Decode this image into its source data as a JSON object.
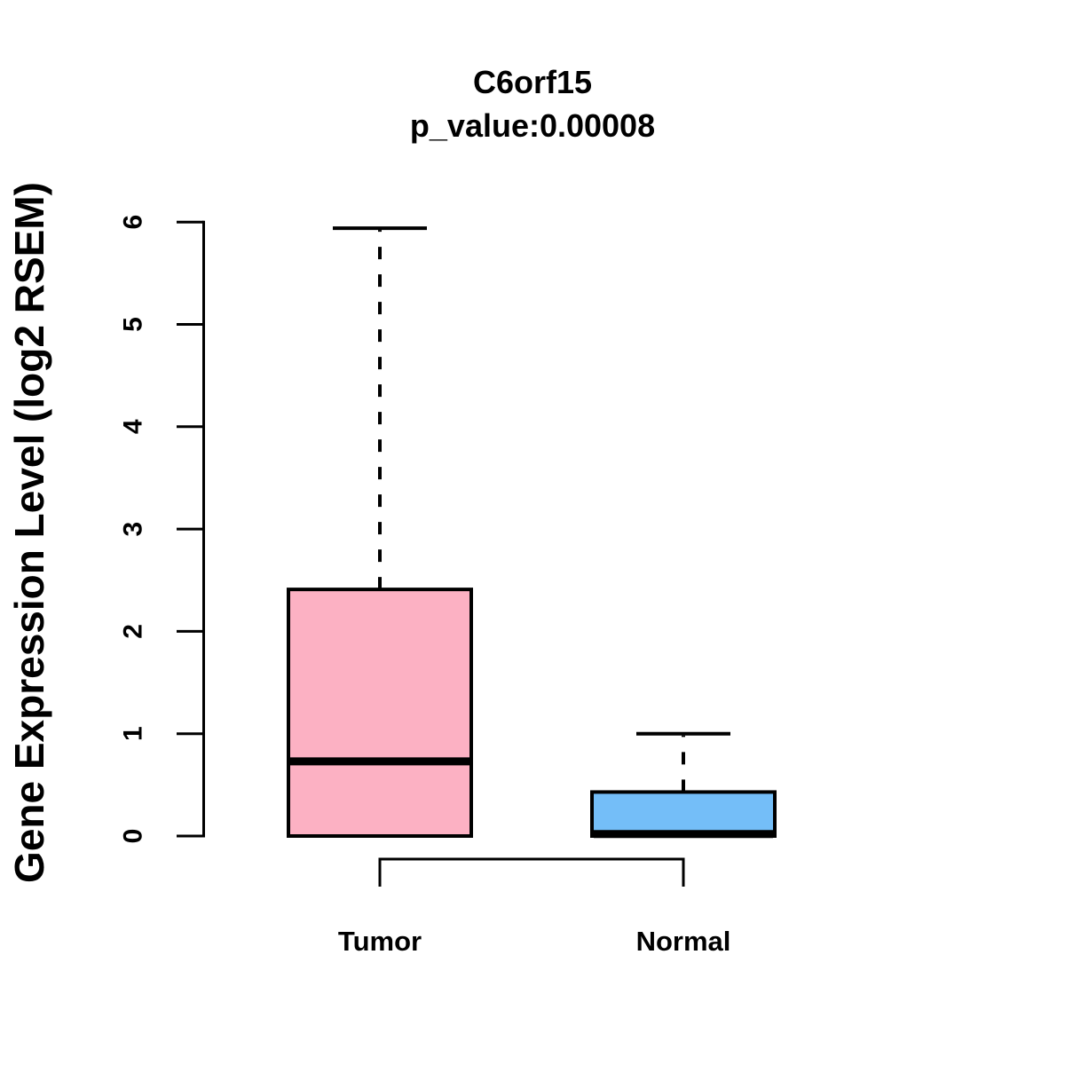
{
  "title": "C6orf15",
  "subtitle": "p_value:0.00008",
  "chart_data": {
    "type": "boxplot",
    "title": "C6orf15",
    "subtitle": "p_value:0.00008",
    "xlabel": "",
    "ylabel": "Gene Expression Level (log2 RSEM)",
    "ylim": [
      0,
      6
    ],
    "yticks": [
      0,
      1,
      2,
      3,
      4,
      5,
      6
    ],
    "grid": false,
    "legend": "none",
    "categories": [
      "Tumor",
      "Normal"
    ],
    "groups": [
      {
        "label": "Tumor",
        "fill_color": "#FCB1C3",
        "border_color": "#000000",
        "whisker_low": 0,
        "q1": 0,
        "median": 0.73,
        "q3": 2.41,
        "whisker_high": 5.94
      },
      {
        "label": "Normal",
        "fill_color": "#74BEF8",
        "border_color": "#000000",
        "whisker_low": 0,
        "q1": 0,
        "median": 0.02,
        "q3": 0.43,
        "whisker_high": 1.0
      }
    ],
    "comparison_bracket": {
      "from": "Tumor",
      "to": "Normal"
    }
  }
}
